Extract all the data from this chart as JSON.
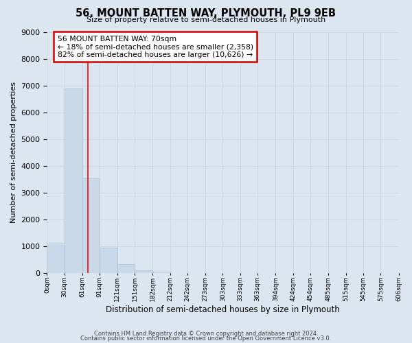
{
  "title": "56, MOUNT BATTEN WAY, PLYMOUTH, PL9 9EB",
  "subtitle": "Size of property relative to semi-detached houses in Plymouth",
  "bar_values": [
    1100,
    6900,
    3550,
    950,
    330,
    120,
    70,
    0,
    0,
    0,
    0,
    0,
    0,
    0,
    0,
    0,
    0,
    0,
    0,
    0
  ],
  "bar_labels": [
    "0sqm",
    "30sqm",
    "61sqm",
    "91sqm",
    "121sqm",
    "151sqm",
    "182sqm",
    "212sqm",
    "242sqm",
    "273sqm",
    "303sqm",
    "333sqm",
    "363sqm",
    "394sqm",
    "424sqm",
    "454sqm",
    "485sqm",
    "515sqm",
    "545sqm",
    "575sqm",
    "606sqm"
  ],
  "bin_edges": [
    0,
    30,
    61,
    91,
    121,
    151,
    182,
    212,
    242,
    273,
    303,
    333,
    363,
    394,
    424,
    454,
    485,
    515,
    545,
    575,
    606
  ],
  "bar_color": "#c9d9ea",
  "bar_edge_color": "#a8bece",
  "ylim": [
    0,
    9000
  ],
  "yticks": [
    0,
    1000,
    2000,
    3000,
    4000,
    5000,
    6000,
    7000,
    8000,
    9000
  ],
  "xlabel": "Distribution of semi-detached houses by size in Plymouth",
  "ylabel": "Number of semi-detached properties",
  "red_line_x": 70,
  "annotation_title": "56 MOUNT BATTEN WAY: 70sqm",
  "annotation_line1": "← 18% of semi-detached houses are smaller (2,358)",
  "annotation_line2": "82% of semi-detached houses are larger (10,626) →",
  "annotation_box_color": "#ffffff",
  "annotation_box_edge_color": "#cc0000",
  "grid_color": "#c8d4de",
  "background_color": "#dce6f0",
  "fig_background_color": "#dce6f0",
  "footer_line1": "Contains HM Land Registry data © Crown copyright and database right 2024.",
  "footer_line2": "Contains public sector information licensed under the Open Government Licence v3.0."
}
